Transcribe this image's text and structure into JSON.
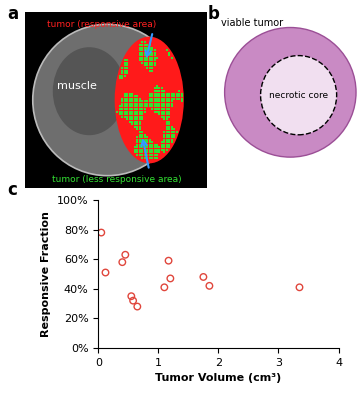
{
  "panels": {
    "a": {
      "label": "a",
      "muscle": "muscle",
      "responsive": "tumor (responsive area)",
      "less_responsive": "tumor (less responsive area)"
    },
    "b": {
      "label": "b",
      "viable": "viable tumor",
      "necrotic": "necrotic core"
    },
    "c": {
      "label": "c"
    }
  },
  "chart_data": {
    "type": "scatter",
    "x_label": "Tumor Volume (cm³)",
    "y_label": "Responsive Fraction",
    "x": [
      0.05,
      0.12,
      0.4,
      0.45,
      0.55,
      0.58,
      0.65,
      1.1,
      1.17,
      1.2,
      1.75,
      1.85,
      3.35
    ],
    "values": [
      78,
      51,
      58,
      63,
      35,
      32,
      28,
      41,
      59,
      47,
      48,
      42,
      41
    ],
    "color": "#e0463c",
    "marker": "open_circle",
    "xlim": [
      0,
      4
    ],
    "xticks": [
      0,
      1,
      2,
      3,
      4
    ],
    "ylim": [
      0,
      100
    ],
    "yticks": [
      {
        "value": 0,
        "label": "0%"
      },
      {
        "value": 20,
        "label": "20%"
      },
      {
        "value": 40,
        "label": "40%"
      },
      {
        "value": 60,
        "label": "60%"
      },
      {
        "value": 80,
        "label": "80%"
      },
      {
        "value": 100,
        "label": "100%"
      }
    ],
    "grid": false
  }
}
